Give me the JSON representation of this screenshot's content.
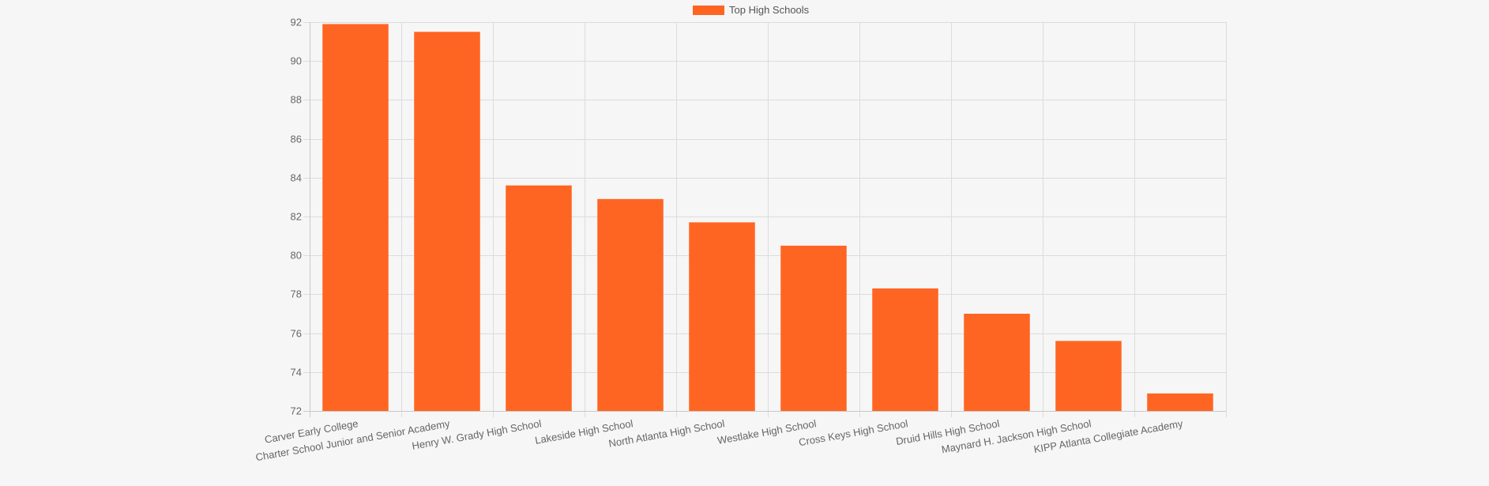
{
  "chart_data": {
    "type": "bar",
    "title": "",
    "xlabel": "",
    "ylabel": "",
    "categories": [
      "Carver Early College",
      "Charter School Junior and Senior Academy",
      "Henry W. Grady High School",
      "Lakeside High School",
      "North Atlanta High School",
      "Westlake High School",
      "Cross Keys High School",
      "Druid Hills High School",
      "Maynard H. Jackson High School",
      "KIPP Atlanta Collegiate Academy"
    ],
    "series": [
      {
        "name": "Top High Schools",
        "color": "#ff6522",
        "values": [
          91.9,
          91.5,
          83.6,
          82.9,
          81.7,
          80.5,
          78.3,
          77.0,
          75.6,
          72.9
        ]
      }
    ],
    "ylim": [
      72,
      92
    ],
    "yticks": [
      72,
      74,
      76,
      78,
      80,
      82,
      84,
      86,
      88,
      90,
      92
    ],
    "grid": true,
    "legend": "top-center"
  }
}
